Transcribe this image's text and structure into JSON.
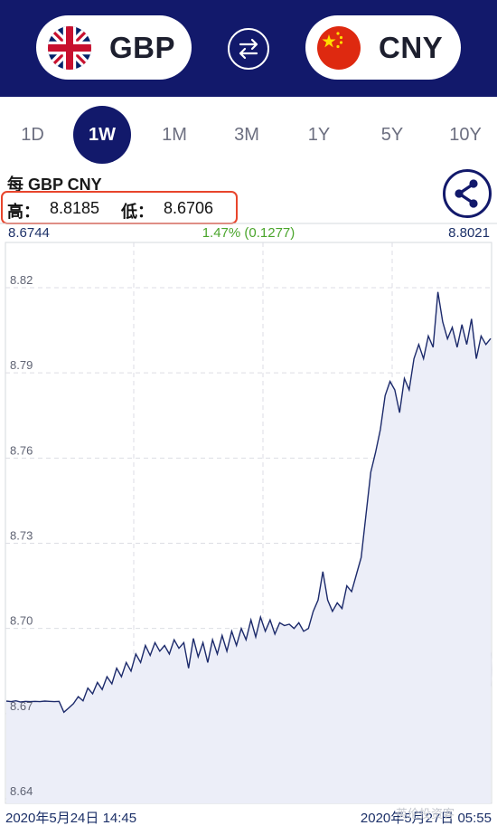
{
  "header": {
    "from_currency": "GBP",
    "to_currency": "CNY"
  },
  "icons": {
    "from_flag": "uk-flag-icon",
    "to_flag": "china-flag-icon",
    "swap": "swap-arrows-icon",
    "share": "share-icon"
  },
  "tabs": [
    {
      "label": "1D",
      "active": false
    },
    {
      "label": "1W",
      "active": true
    },
    {
      "label": "1M",
      "active": false
    },
    {
      "label": "3M",
      "active": false
    },
    {
      "label": "1Y",
      "active": false
    },
    {
      "label": "5Y",
      "active": false
    },
    {
      "label": "10Y",
      "active": false
    }
  ],
  "info": {
    "pair_label": "每 GBP CNY",
    "high_label": "高：",
    "high_value": "8.8185",
    "low_label": "低：",
    "low_value": "8.6706"
  },
  "stats": {
    "open": "8.6744",
    "change": "1.47% (0.1277)",
    "close": "8.8021"
  },
  "colors": {
    "brand_navy": "#12196b",
    "change_green": "#4aa52b",
    "highlight_red": "#e8452c",
    "line": "#1c2a6b",
    "area": "#eceef8"
  },
  "chart_data": {
    "type": "area",
    "y_ticks": [
      "8.82",
      "8.79",
      "8.76",
      "8.73",
      "8.70",
      "8.67",
      "8.64"
    ],
    "x_labels": [
      "2020年5月24日 14:45",
      "2020年5月27日 05:55"
    ],
    "ylim": [
      8.64,
      8.83
    ],
    "grid": true,
    "watermark_logo": "xe",
    "series": [
      {
        "values": [
          8.6744,
          8.6742,
          8.6745,
          8.6741,
          8.6743,
          8.6742,
          8.6743,
          8.6742,
          8.6744,
          8.6743,
          8.6742,
          8.6743,
          8.6705,
          8.672,
          8.6735,
          8.676,
          8.6745,
          8.679,
          8.677,
          8.681,
          8.6785,
          8.683,
          8.6805,
          8.686,
          8.683,
          8.688,
          8.685,
          8.691,
          8.688,
          8.694,
          8.6905,
          8.695,
          8.692,
          8.694,
          8.691,
          8.696,
          8.693,
          8.695,
          8.686,
          8.6965,
          8.69,
          8.695,
          8.688,
          8.696,
          8.691,
          8.6975,
          8.692,
          8.699,
          8.694,
          8.7,
          8.696,
          8.703,
          8.697,
          8.704,
          8.699,
          8.703,
          8.698,
          8.702,
          8.701,
          8.7015,
          8.7,
          8.702,
          8.699,
          8.7,
          8.706,
          8.71,
          8.72,
          8.71,
          8.706,
          8.709,
          8.707,
          8.715,
          8.713,
          8.719,
          8.725,
          8.74,
          8.755,
          8.762,
          8.77,
          8.782,
          8.787,
          8.784,
          8.776,
          8.788,
          8.784,
          8.795,
          8.8,
          8.795,
          8.803,
          8.799,
          8.8185,
          8.808,
          8.802,
          8.806,
          8.799,
          8.807,
          8.8,
          8.809,
          8.795,
          8.803,
          8.8,
          8.8021
        ]
      }
    ]
  }
}
